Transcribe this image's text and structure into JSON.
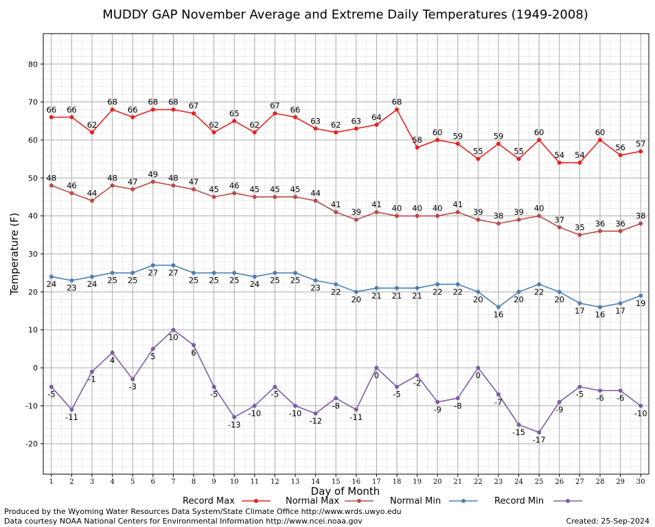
{
  "chart_data": {
    "type": "line",
    "title": "MUDDY GAP November Average and Extreme Daily Temperatures (1949-2008)",
    "xlabel": "Day of Month",
    "ylabel": "Temperature (F)",
    "ylim": [
      -28,
      88
    ],
    "xlim": [
      0.6,
      30.4
    ],
    "y_ticks": [
      -20,
      -10,
      0,
      10,
      20,
      30,
      40,
      50,
      60,
      70,
      80
    ],
    "x_ticks": [
      1,
      2,
      3,
      4,
      5,
      6,
      7,
      8,
      9,
      10,
      11,
      12,
      13,
      14,
      15,
      16,
      17,
      18,
      19,
      20,
      21,
      22,
      23,
      24,
      25,
      26,
      27,
      28,
      29,
      30
    ],
    "grid": true,
    "legend_position": "bottom",
    "x": [
      1,
      2,
      3,
      4,
      5,
      6,
      7,
      8,
      9,
      10,
      11,
      12,
      13,
      14,
      15,
      16,
      17,
      18,
      19,
      20,
      21,
      22,
      23,
      24,
      25,
      26,
      27,
      28,
      29,
      30
    ],
    "series": [
      {
        "name": "Record Max",
        "color": "#e8211f",
        "label_pos": "above",
        "values": [
          66,
          66,
          62,
          68,
          66,
          68,
          68,
          67,
          62,
          65,
          62,
          67,
          66,
          63,
          62,
          63,
          64,
          68,
          58,
          60,
          59,
          55,
          59,
          55,
          60,
          54,
          54,
          60,
          56,
          57
        ]
      },
      {
        "name": "Normal Max",
        "color": "#b94a48",
        "label_pos": "above",
        "values": [
          48,
          46,
          44,
          48,
          47,
          49,
          48,
          47,
          45,
          46,
          45,
          45,
          45,
          44,
          41,
          39,
          41,
          40,
          40,
          40,
          41,
          39,
          38,
          39,
          40,
          37,
          35,
          36,
          36,
          38
        ]
      },
      {
        "name": "Normal Min",
        "color": "#4a7fb5",
        "label_pos": "below",
        "values": [
          24,
          23,
          24,
          25,
          25,
          27,
          27,
          25,
          25,
          25,
          24,
          25,
          25,
          23,
          22,
          20,
          21,
          21,
          21,
          22,
          22,
          20,
          16,
          20,
          22,
          20,
          17,
          16,
          17,
          19
        ]
      },
      {
        "name": "Record Min",
        "color": "#7d5ba6",
        "label_pos": "below",
        "values": [
          -5,
          -11,
          -1,
          4,
          -3,
          5,
          10,
          6,
          -5,
          -13,
          -10,
          -5,
          -10,
          -12,
          -8,
          -11,
          0,
          -5,
          -2,
          -9,
          -8,
          0,
          -7,
          -15,
          -17,
          -9,
          -5,
          -6,
          -6,
          -10
        ]
      }
    ]
  },
  "footer": {
    "produced_by": "Produced by the Wyoming Water Resources Data System/State Climate Office http://www.wrds.uwyo.edu",
    "courtesy": "Data courtesy NOAA National Centers for Environmental Information http://www.ncei.noaa.gov",
    "created": "Created:  25-Sep-2024"
  }
}
